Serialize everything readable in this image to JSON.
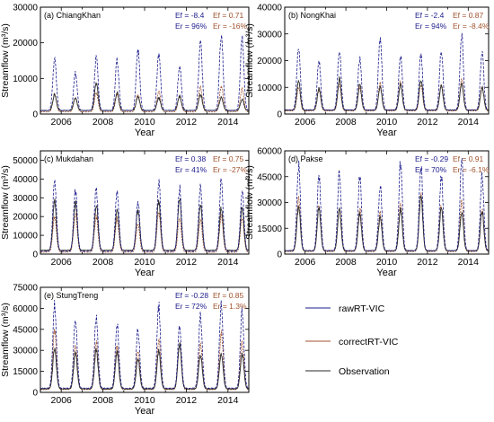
{
  "figure": {
    "colors": {
      "raw": "#1c1c8c",
      "correct": "#a0522d",
      "obs": "#2a2a2a",
      "axis": "#000000"
    },
    "legend": {
      "entries": [
        {
          "key": "raw",
          "label": "rawRT-VIC"
        },
        {
          "key": "correct",
          "label": "correctRT-VIC"
        },
        {
          "key": "obs",
          "label": "Observation"
        }
      ]
    }
  },
  "chart_data": [
    {
      "type": "line",
      "title": "(a) ChiangKhan",
      "xlabel": "Year",
      "ylabel": "Streamflow (m³/s)",
      "xlim": [
        2005,
        2015
      ],
      "ylim": [
        0,
        30000
      ],
      "xticks": [
        2006,
        2008,
        2010,
        2012,
        2014
      ],
      "yticks": [
        0,
        10000,
        20000,
        30000
      ],
      "ytick_labels": [
        "0",
        "10000",
        "20000",
        "30000"
      ],
      "stats": {
        "ef_raw": "Ef = -8.4",
        "ef_cor": "Ef = 0.71",
        "er_raw": "Er = 96%",
        "er_cor": "Er = -16%"
      },
      "series": [
        {
          "key": "raw",
          "peaks": [
            15500,
            11500,
            15500,
            15000,
            18000,
            17000,
            13500,
            20000,
            22500,
            21000
          ],
          "base": 1000
        },
        {
          "key": "correct",
          "peaks": [
            5500,
            4500,
            6000,
            5500,
            5500,
            6500,
            5000,
            7500,
            8000,
            7000
          ],
          "base": 600
        },
        {
          "key": "obs",
          "peaks": [
            5500,
            4500,
            8500,
            6000,
            5000,
            4500,
            5000,
            5500,
            4800,
            4000
          ],
          "base": 1000
        }
      ]
    },
    {
      "type": "line",
      "title": "(b) NongKhai",
      "xlabel": "Year",
      "ylabel": "Streamflow (m³/s)",
      "xlim": [
        2005,
        2015
      ],
      "ylim": [
        0,
        40000
      ],
      "xticks": [
        2006,
        2008,
        2010,
        2012,
        2014
      ],
      "yticks": [
        0,
        10000,
        20000,
        30000,
        40000
      ],
      "ytick_labels": [
        "0",
        "10000",
        "20000",
        "30000",
        "40000"
      ],
      "stats": {
        "ef_raw": "Ef = -2.4",
        "ef_cor": "Ef = 0.87",
        "er_raw": "Er = 94%",
        "er_cor": "Er = -8.4%"
      },
      "series": [
        {
          "key": "raw",
          "peaks": [
            25000,
            20000,
            24000,
            21000,
            29000,
            22000,
            22000,
            24000,
            29000,
            23000
          ],
          "base": 1500
        },
        {
          "key": "correct",
          "peaks": [
            10000,
            9000,
            11000,
            10000,
            11500,
            12000,
            11000,
            11000,
            13000,
            10000
          ],
          "base": 1200
        },
        {
          "key": "obs",
          "peaks": [
            12000,
            9500,
            13000,
            11000,
            10000,
            11000,
            13000,
            10500,
            11000,
            10000
          ],
          "base": 1500
        }
      ]
    },
    {
      "type": "line",
      "title": "(c) Mukdahan",
      "xlabel": "Year",
      "ylabel": "Streamflow (m³/s)",
      "xlim": [
        2005,
        2015
      ],
      "ylim": [
        0,
        55000
      ],
      "xticks": [
        2006,
        2008,
        2010,
        2012,
        2014
      ],
      "yticks": [
        0,
        10000,
        20000,
        30000,
        40000,
        50000
      ],
      "ytick_labels": [
        "0",
        "10000",
        "20000",
        "30000",
        "40000",
        "50000"
      ],
      "stats": {
        "ef_raw": "Ef = 0.38",
        "ef_cor": "Ef = 0.75",
        "er_raw": "Er = 41%",
        "er_cor": "Er = -27%"
      },
      "series": [
        {
          "key": "raw",
          "peaks": [
            40000,
            34000,
            35000,
            34000,
            28000,
            39000,
            35000,
            36000,
            40000,
            34000
          ],
          "base": 1500
        },
        {
          "key": "correct",
          "peaks": [
            20000,
            22000,
            20000,
            19000,
            16000,
            22000,
            19000,
            18000,
            20000,
            19000
          ],
          "base": 1000
        },
        {
          "key": "obs",
          "peaks": [
            28000,
            28000,
            26000,
            24000,
            24000,
            28000,
            30000,
            27000,
            25000,
            25000
          ],
          "base": 2000
        }
      ]
    },
    {
      "type": "line",
      "title": "(d) Pakse",
      "xlabel": "Year",
      "ylabel": "Streamflow (m³/s)",
      "xlim": [
        2005,
        2015
      ],
      "ylim": [
        0,
        60000
      ],
      "xticks": [
        2006,
        2008,
        2010,
        2012,
        2014
      ],
      "yticks": [
        0,
        15000,
        30000,
        45000,
        60000
      ],
      "ytick_labels": [
        "0",
        "15000",
        "30000",
        "45000",
        "60000"
      ],
      "stats": {
        "ef_raw": "Ef = -0.29",
        "ef_cor": "Ef = 0.91",
        "er_raw": "Er = 70%",
        "er_cor": "Er = -6.1%"
      },
      "series": [
        {
          "key": "raw",
          "peaks": [
            52000,
            45000,
            47000,
            45000,
            40000,
            53000,
            51000,
            46000,
            54000,
            45000
          ],
          "base": 2000
        },
        {
          "key": "correct",
          "peaks": [
            32000,
            28000,
            27000,
            26000,
            24000,
            30000,
            35000,
            28000,
            30000,
            27000
          ],
          "base": 1500
        },
        {
          "key": "obs",
          "peaks": [
            28000,
            27000,
            26000,
            24000,
            21000,
            26000,
            34000,
            26000,
            24000,
            25000
          ],
          "base": 2000
        }
      ]
    },
    {
      "type": "line",
      "title": "(e) StungTreng",
      "xlabel": "Year",
      "ylabel": "Streamflow (m³/s)",
      "xlim": [
        2005,
        2015
      ],
      "ylim": [
        0,
        75000
      ],
      "xticks": [
        2006,
        2008,
        2010,
        2012,
        2014
      ],
      "yticks": [
        0,
        15000,
        30000,
        45000,
        60000,
        75000
      ],
      "ytick_labels": [
        "0",
        "15000",
        "30000",
        "45000",
        "60000",
        "75000"
      ],
      "stats": {
        "ef_raw": "Ef = -0.28",
        "ef_cor": "Ef = 0.85",
        "er_raw": "Er = 72%",
        "er_cor": "Er = 1.3%"
      },
      "series": [
        {
          "key": "raw",
          "peaks": [
            63000,
            53000,
            55000,
            50000,
            45000,
            62000,
            47000,
            55000,
            63000,
            59000
          ],
          "base": 3000
        },
        {
          "key": "correct",
          "peaks": [
            44000,
            35000,
            35000,
            33000,
            30000,
            37000,
            34000,
            34000,
            43000,
            35000
          ],
          "base": 2000
        },
        {
          "key": "obs",
          "peaks": [
            31000,
            28000,
            30000,
            29000,
            24000,
            30000,
            35000,
            27000,
            28000,
            27000
          ],
          "base": 2500
        }
      ]
    }
  ]
}
